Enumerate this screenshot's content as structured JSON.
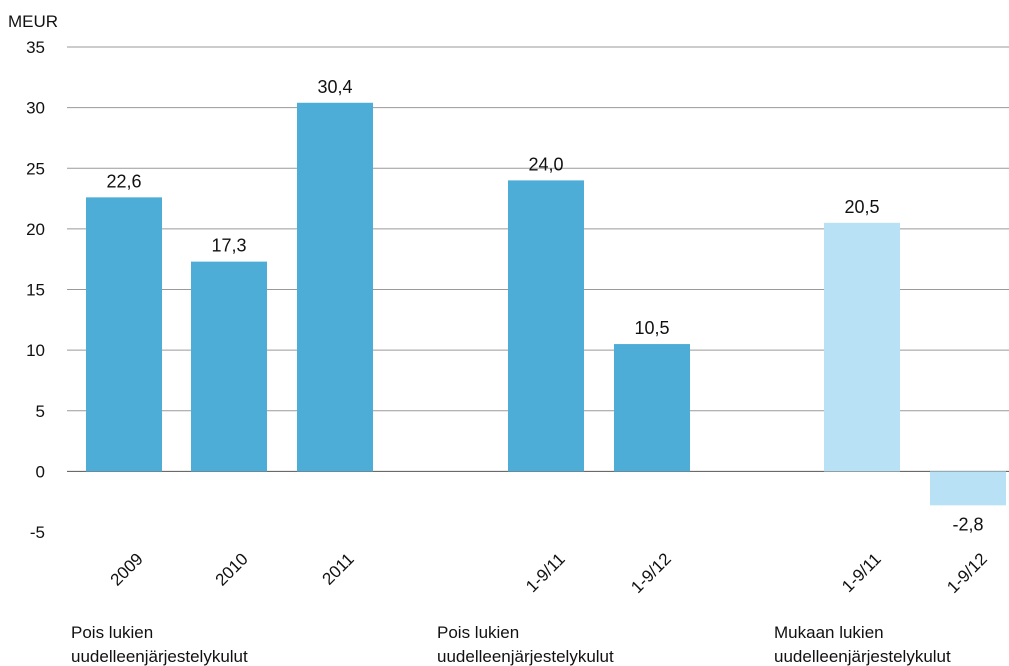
{
  "chart_data": {
    "type": "bar",
    "unit_label": "MEUR",
    "ylim": [
      -5,
      35
    ],
    "yticks": [
      "35",
      "30",
      "25",
      "20",
      "15",
      "10",
      "5",
      "0",
      "-5"
    ],
    "grid": true,
    "categories": [
      "2009",
      "2010",
      "2011",
      "1-9/11",
      "1-9/12",
      "1-9/11",
      "1-9/12"
    ],
    "values": [
      22.6,
      17.3,
      30.4,
      24.0,
      10.5,
      20.5,
      -2.8
    ],
    "data_labels": [
      "22,6",
      "17,3",
      "30,4",
      "24,0",
      "10,5",
      "20,5",
      "-2,8"
    ],
    "colors": [
      "#4dadd6",
      "#4dadd6",
      "#4dadd6",
      "#4dadd6",
      "#4dadd6",
      "#b9e1f5",
      "#b9e1f5"
    ],
    "groups": [
      {
        "line1": "Pois lukien",
        "line2": "uudelleenjärjestelykulut"
      },
      {
        "line1": "Pois lukien",
        "line2": "uudelleenjärjestelykulut"
      },
      {
        "line1": "Mukaan lukien",
        "line2": "uudelleenjärjestelykulut"
      }
    ]
  }
}
